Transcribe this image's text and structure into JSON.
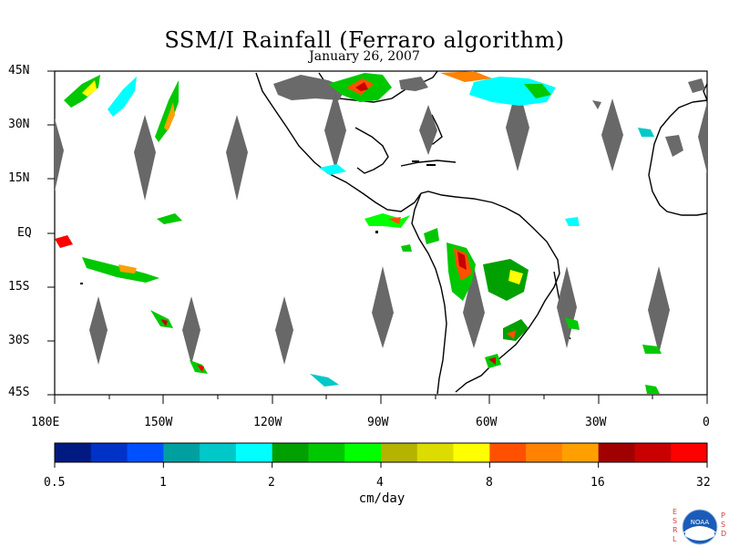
{
  "title": "SSM/I Rainfall (Ferraro algorithm)",
  "date": "January 26, 2007",
  "lat_labels": [
    "45N",
    "30N",
    "15N",
    "EQ",
    "15S",
    "30S",
    "45S"
  ],
  "lon_labels": [
    "180E",
    "150W",
    "120W",
    "90W",
    "60W",
    "30W",
    "0"
  ],
  "colorbar": {
    "colors": [
      "#001a82",
      "#0032c8",
      "#0050ff",
      "#00a0a0",
      "#00c8c8",
      "#00ffff",
      "#00a000",
      "#00c800",
      "#00ff00",
      "#b4b400",
      "#dcdc00",
      "#ffff00",
      "#ff5000",
      "#ff8200",
      "#ffa000",
      "#a00000",
      "#c80000",
      "#ff0000"
    ],
    "ticks": [
      "0.5",
      "1",
      "2",
      "4",
      "8",
      "16",
      "32"
    ],
    "unit": "cm/day"
  },
  "logo": {
    "left_letters": [
      "E",
      "S",
      "R",
      "L"
    ],
    "right_letters": [
      "P",
      "S",
      "D"
    ],
    "text": "NOAA"
  }
}
